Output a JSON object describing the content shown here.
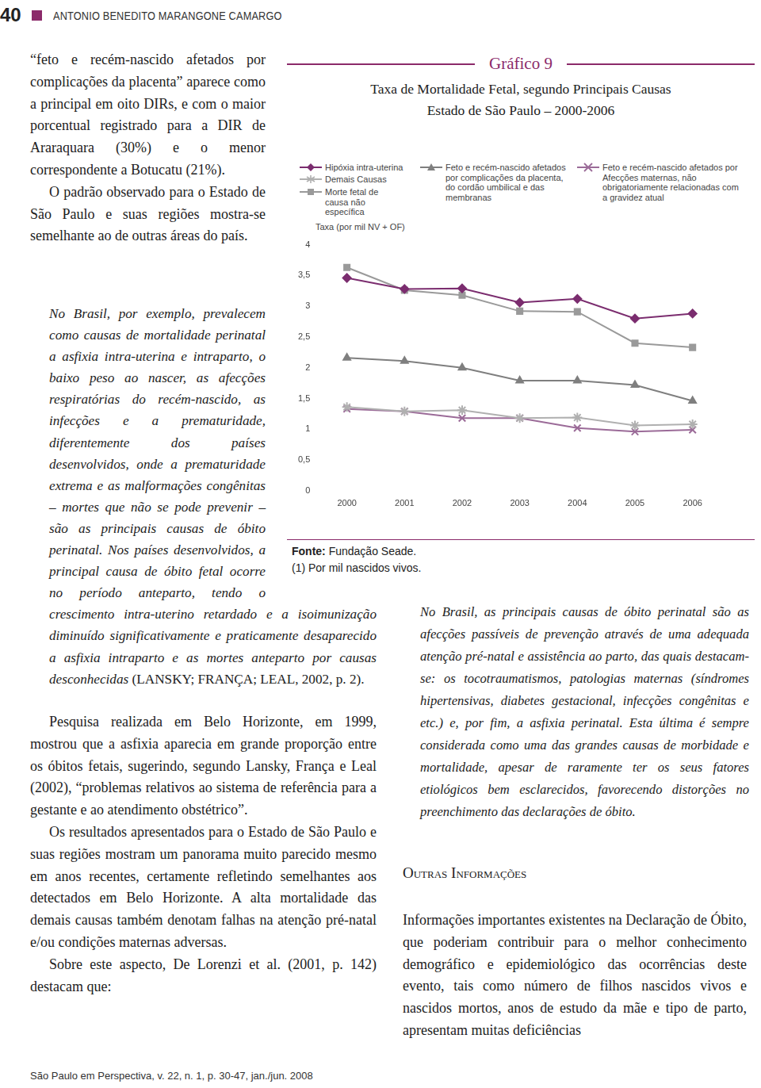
{
  "header": {
    "page_number": "40",
    "author": "ANTONIO BENEDITO MARANGONE CAMARGO"
  },
  "top_paragraphs": [
    "“feto e recém-nascido afetados por complicações da placenta” aparece como a principal em oito DIRs, e com o maior porcentual registrado para a DIR de Araraquara (30%) e o menor correspondente a Botucatu (21%).",
    "O padrão observado para o Estado de São Paulo e suas regiões mostra-se semelhante ao de outras áreas do país."
  ],
  "quote": {
    "text": "No Brasil, por exemplo, prevalecem como causas de mortalidade perinatal a asfixia intra-uterina e intraparto, o baixo peso ao nascer, as afecções respiratórias do recém-nascido, as infecções e a prematuridade, diferentemente dos países desenvolvidos, onde a prematuridade extrema e as malformações congênitas – mortes que não se pode prevenir – são as principais causas de óbito perinatal. Nos países desenvolvidos, a principal causa de óbito fetal ocorre no período anteparto, tendo o crescimento intra-uterino retardado e a isoimunização diminuído significativamente e praticamente desaparecido a asfixia intraparto e as mortes anteparto por causas desconhecidas",
    "citation": "(LANSKY; FRANÇA; LEAL, 2002, p. 2)."
  },
  "bottom_paragraphs": [
    "Pesquisa realizada em Belo Horizonte, em 1999, mostrou que a asfixia aparecia em grande proporção entre os óbitos fetais, sugerindo, segundo Lansky, França e Leal (2002), “problemas relativos ao sistema de referência para a gestante e ao atendimento obstétrico”.",
    "Os resultados apresentados para o Estado de São Paulo e suas regiões mostram um panorama muito parecido mesmo em anos recentes, certamente refletindo semelhantes aos detectados em Belo Horizonte. A alta mortalidade das demais causas também denotam falhas na atenção pré-natal e/ou condições maternas adversas.",
    "Sobre este aspecto, De Lorenzi et al. (2001, p. 142) destacam que:"
  ],
  "right_quote": "No Brasil, as principais causas de óbito perinatal são as afecções passíveis de prevenção através de uma adequada atenção pré-natal e assistência ao parto, das quais destacam-se: os tocotraumatismos, patologias maternas (síndromes hipertensivas, diabetes gestacional, infecções congênitas e etc.) e, por fim, a asfixia perinatal. Esta última é sempre considerada como uma das grandes causas de morbidade e mortalidade, apesar de raramente ter os seus fatores etiológicos bem esclarecidos, favorecendo distorções no preenchimento das declarações de óbito.",
  "section": {
    "heading": "Outras Informações",
    "text": "Informações importantes existentes na Declaração de Óbito, que poderiam contribuir para o melhor conhecimento demográfico e epidemiológico das ocorrências deste evento, tais como número de filhos nascidos vivos e nascidos mortos, anos de estudo da mãe e tipo de parto, apresentam muitas deficiências"
  },
  "chart_source": {
    "label": "Fonte:",
    "text": "Fundação Seade."
  },
  "chart_note": "(1) Por mil nascidos vivos.",
  "footer": "São Paulo em Perspectiva, v. 22, n. 1, p. 30-47, jan./jun. 2008",
  "chart_data": {
    "type": "line",
    "title": "Gráfico 9",
    "subtitle": [
      "Taxa de Mortalidade Fetal, segundo Principais Causas",
      "Estado de São Paulo – 2000-2006"
    ],
    "y_label": "Taxa (por mil NV + OF)",
    "categories": [
      "2000",
      "2001",
      "2002",
      "2003",
      "2004",
      "2005",
      "2006"
    ],
    "series": [
      {
        "name": "Hipóxia intra-uterina",
        "color": "#7b2d6f",
        "marker": "diamond",
        "values": [
          3.46,
          3.28,
          3.29,
          3.06,
          3.12,
          2.8,
          2.88
        ]
      },
      {
        "name": "Demais Causas",
        "color": "#b0b0b0",
        "marker": "asterisk",
        "values": [
          1.36,
          1.29,
          1.31,
          1.18,
          1.19,
          1.06,
          1.08
        ]
      },
      {
        "name": "Morte fetal de causa não específica",
        "color": "#9a9a9a",
        "marker": "square",
        "values": [
          3.63,
          3.26,
          3.18,
          2.92,
          2.91,
          2.4,
          2.33
        ]
      },
      {
        "name": "Feto e recém-nascido afetados por complicações da placenta, do cordão umbilical e das membranas",
        "color": "#7f7f7f",
        "marker": "triangle",
        "values": [
          2.16,
          2.11,
          2.0,
          1.79,
          1.79,
          1.72,
          1.46
        ]
      },
      {
        "name": "Feto e recém-nascido afetados por Afecções maternas, não obrigatoriamente relacionadas com a gravidez atual",
        "color": "#9b6b98",
        "marker": "x",
        "values": [
          1.33,
          1.29,
          1.18,
          1.18,
          1.02,
          0.96,
          0.99
        ]
      }
    ],
    "ylim": [
      0,
      4
    ],
    "yticks": [
      0,
      {
        "value": 0.5,
        "label": "0,5"
      },
      1,
      {
        "value": 1.5,
        "label": "1,5"
      },
      2,
      {
        "value": 2.5,
        "label": "2,5"
      },
      3,
      {
        "value": 3.5,
        "label": "3,5"
      },
      4
    ],
    "grid": false,
    "legend": "top"
  }
}
